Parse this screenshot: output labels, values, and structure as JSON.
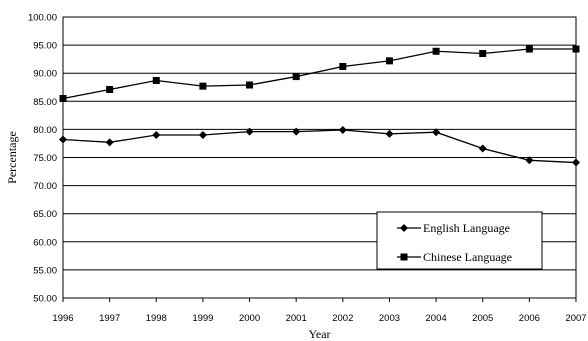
{
  "chart_data": {
    "type": "line",
    "xlabel": "Year",
    "ylabel": "Percentage",
    "x": [
      "1996",
      "1997",
      "1998",
      "1999",
      "2000",
      "2001",
      "2002",
      "2003",
      "2004",
      "2005",
      "2006",
      "2007"
    ],
    "ylim": [
      50,
      100
    ],
    "yticks": [
      "50.00",
      "55.00",
      "60.00",
      "65.00",
      "70.00",
      "75.00",
      "80.00",
      "85.00",
      "90.00",
      "95.00",
      "100.00"
    ],
    "grid": true,
    "legend_position": "bottom-right",
    "series": [
      {
        "name": "English Language",
        "marker": "diamond",
        "color": "#000000",
        "values": [
          78.2,
          77.7,
          79.0,
          79.0,
          79.6,
          79.6,
          79.9,
          79.2,
          79.5,
          76.6,
          74.5,
          74.1
        ]
      },
      {
        "name": "Chinese Language",
        "marker": "square",
        "color": "#000000",
        "values": [
          85.5,
          87.1,
          88.7,
          87.7,
          87.9,
          89.4,
          91.2,
          92.2,
          93.9,
          93.5,
          94.3,
          94.3
        ]
      }
    ]
  }
}
